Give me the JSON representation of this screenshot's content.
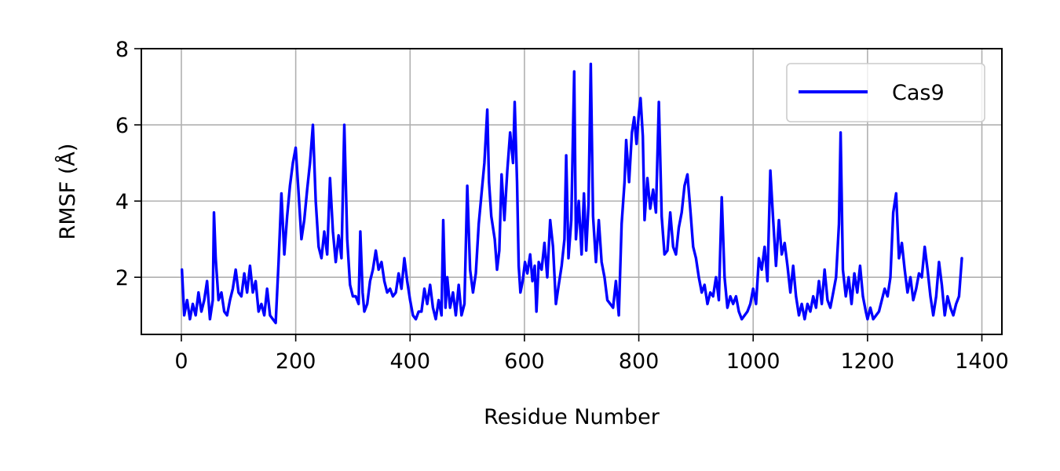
{
  "chart_data": {
    "type": "line",
    "xlabel": "Residue Number",
    "ylabel": "RMSF (Å)",
    "xlim": [
      -70,
      1435
    ],
    "ylim": [
      0.5,
      8
    ],
    "xticks": [
      0,
      200,
      400,
      600,
      800,
      1000,
      1200,
      1400
    ],
    "yticks": [
      2,
      4,
      6,
      8
    ],
    "grid": true,
    "legend": "top-right",
    "series": [
      {
        "name": "Cas9",
        "color": "#0000ff",
        "points": [
          [
            1,
            2.2
          ],
          [
            5,
            1.0
          ],
          [
            10,
            1.4
          ],
          [
            15,
            0.9
          ],
          [
            20,
            1.3
          ],
          [
            25,
            1.0
          ],
          [
            30,
            1.6
          ],
          [
            35,
            1.1
          ],
          [
            40,
            1.4
          ],
          [
            45,
            1.9
          ],
          [
            50,
            0.9
          ],
          [
            55,
            1.4
          ],
          [
            57,
            3.7
          ],
          [
            60,
            2.5
          ],
          [
            65,
            1.4
          ],
          [
            70,
            1.6
          ],
          [
            75,
            1.1
          ],
          [
            80,
            1.0
          ],
          [
            85,
            1.4
          ],
          [
            90,
            1.7
          ],
          [
            95,
            2.2
          ],
          [
            100,
            1.6
          ],
          [
            105,
            1.5
          ],
          [
            110,
            2.1
          ],
          [
            115,
            1.6
          ],
          [
            120,
            2.3
          ],
          [
            125,
            1.6
          ],
          [
            130,
            1.9
          ],
          [
            135,
            1.1
          ],
          [
            140,
            1.3
          ],
          [
            145,
            1.0
          ],
          [
            150,
            1.7
          ],
          [
            155,
            1.0
          ],
          [
            160,
            0.9
          ],
          [
            165,
            0.8
          ],
          [
            170,
            2.4
          ],
          [
            175,
            4.2
          ],
          [
            180,
            2.6
          ],
          [
            185,
            3.6
          ],
          [
            190,
            4.4
          ],
          [
            195,
            5.0
          ],
          [
            200,
            5.4
          ],
          [
            205,
            4.2
          ],
          [
            210,
            3.0
          ],
          [
            215,
            3.5
          ],
          [
            220,
            4.3
          ],
          [
            225,
            5.0
          ],
          [
            230,
            6.0
          ],
          [
            235,
            4.0
          ],
          [
            240,
            2.8
          ],
          [
            245,
            2.5
          ],
          [
            250,
            3.2
          ],
          [
            255,
            2.6
          ],
          [
            260,
            4.6
          ],
          [
            265,
            3.2
          ],
          [
            270,
            2.4
          ],
          [
            275,
            3.1
          ],
          [
            280,
            2.5
          ],
          [
            285,
            6.0
          ],
          [
            290,
            3.0
          ],
          [
            295,
            1.8
          ],
          [
            300,
            1.5
          ],
          [
            305,
            1.5
          ],
          [
            310,
            1.3
          ],
          [
            313,
            3.2
          ],
          [
            317,
            1.6
          ],
          [
            320,
            1.1
          ],
          [
            325,
            1.3
          ],
          [
            330,
            1.9
          ],
          [
            335,
            2.2
          ],
          [
            340,
            2.7
          ],
          [
            345,
            2.2
          ],
          [
            350,
            2.4
          ],
          [
            355,
            1.9
          ],
          [
            360,
            1.6
          ],
          [
            365,
            1.7
          ],
          [
            370,
            1.5
          ],
          [
            375,
            1.6
          ],
          [
            380,
            2.1
          ],
          [
            385,
            1.7
          ],
          [
            390,
            2.5
          ],
          [
            395,
            1.9
          ],
          [
            400,
            1.4
          ],
          [
            405,
            1.0
          ],
          [
            410,
            0.9
          ],
          [
            415,
            1.1
          ],
          [
            420,
            1.1
          ],
          [
            425,
            1.7
          ],
          [
            430,
            1.3
          ],
          [
            435,
            1.8
          ],
          [
            440,
            1.2
          ],
          [
            445,
            0.9
          ],
          [
            450,
            1.4
          ],
          [
            455,
            1.0
          ],
          [
            458,
            3.5
          ],
          [
            462,
            1.2
          ],
          [
            465,
            2.0
          ],
          [
            470,
            1.2
          ],
          [
            475,
            1.6
          ],
          [
            480,
            1.0
          ],
          [
            485,
            1.8
          ],
          [
            490,
            1.0
          ],
          [
            495,
            1.3
          ],
          [
            500,
            4.4
          ],
          [
            505,
            2.2
          ],
          [
            510,
            1.6
          ],
          [
            515,
            2.1
          ],
          [
            520,
            3.4
          ],
          [
            525,
            4.2
          ],
          [
            530,
            5.0
          ],
          [
            535,
            6.4
          ],
          [
            538,
            4.5
          ],
          [
            542,
            3.6
          ],
          [
            548,
            3.0
          ],
          [
            552,
            2.2
          ],
          [
            556,
            2.7
          ],
          [
            560,
            4.7
          ],
          [
            565,
            3.5
          ],
          [
            570,
            4.8
          ],
          [
            575,
            5.8
          ],
          [
            580,
            5.0
          ],
          [
            583,
            6.6
          ],
          [
            587,
            4.5
          ],
          [
            590,
            2.3
          ],
          [
            593,
            1.6
          ],
          [
            597,
            1.9
          ],
          [
            601,
            2.4
          ],
          [
            605,
            2.1
          ],
          [
            610,
            2.6
          ],
          [
            614,
            1.9
          ],
          [
            618,
            2.3
          ],
          [
            621,
            1.1
          ],
          [
            625,
            2.4
          ],
          [
            630,
            2.2
          ],
          [
            635,
            2.9
          ],
          [
            640,
            2.0
          ],
          [
            645,
            3.5
          ],
          [
            650,
            2.8
          ],
          [
            655,
            1.3
          ],
          [
            660,
            1.8
          ],
          [
            665,
            2.3
          ],
          [
            670,
            3.0
          ],
          [
            673,
            5.2
          ],
          [
            677,
            2.5
          ],
          [
            682,
            3.5
          ],
          [
            687,
            7.4
          ],
          [
            690,
            3.0
          ],
          [
            695,
            4.0
          ],
          [
            700,
            2.6
          ],
          [
            704,
            4.2
          ],
          [
            708,
            2.7
          ],
          [
            712,
            3.9
          ],
          [
            716,
            7.6
          ],
          [
            720,
            3.6
          ],
          [
            725,
            2.4
          ],
          [
            730,
            3.5
          ],
          [
            735,
            2.4
          ],
          [
            740,
            2.0
          ],
          [
            745,
            1.4
          ],
          [
            750,
            1.3
          ],
          [
            755,
            1.2
          ],
          [
            760,
            1.9
          ],
          [
            765,
            1.0
          ],
          [
            770,
            3.4
          ],
          [
            775,
            4.5
          ],
          [
            778,
            5.6
          ],
          [
            783,
            4.5
          ],
          [
            788,
            5.8
          ],
          [
            792,
            6.2
          ],
          [
            796,
            5.5
          ],
          [
            800,
            6.3
          ],
          [
            803,
            6.7
          ],
          [
            807,
            5.7
          ],
          [
            810,
            3.5
          ],
          [
            815,
            4.6
          ],
          [
            820,
            3.8
          ],
          [
            825,
            4.3
          ],
          [
            830,
            3.7
          ],
          [
            835,
            6.6
          ],
          [
            840,
            3.6
          ],
          [
            845,
            2.6
          ],
          [
            850,
            2.7
          ],
          [
            855,
            3.7
          ],
          [
            860,
            2.8
          ],
          [
            865,
            2.6
          ],
          [
            870,
            3.3
          ],
          [
            875,
            3.7
          ],
          [
            880,
            4.4
          ],
          [
            885,
            4.7
          ],
          [
            890,
            3.8
          ],
          [
            895,
            2.8
          ],
          [
            900,
            2.5
          ],
          [
            905,
            2.0
          ],
          [
            910,
            1.6
          ],
          [
            915,
            1.8
          ],
          [
            920,
            1.3
          ],
          [
            925,
            1.6
          ],
          [
            930,
            1.5
          ],
          [
            935,
            2.0
          ],
          [
            940,
            1.4
          ],
          [
            945,
            4.1
          ],
          [
            950,
            2.0
          ],
          [
            955,
            1.2
          ],
          [
            960,
            1.5
          ],
          [
            965,
            1.3
          ],
          [
            970,
            1.5
          ],
          [
            975,
            1.1
          ],
          [
            980,
            0.9
          ],
          [
            985,
            1.0
          ],
          [
            990,
            1.1
          ],
          [
            995,
            1.3
          ],
          [
            1000,
            1.7
          ],
          [
            1005,
            1.3
          ],
          [
            1010,
            2.5
          ],
          [
            1015,
            2.2
          ],
          [
            1020,
            2.8
          ],
          [
            1025,
            1.9
          ],
          [
            1030,
            4.8
          ],
          [
            1035,
            3.5
          ],
          [
            1040,
            2.3
          ],
          [
            1045,
            3.5
          ],
          [
            1050,
            2.6
          ],
          [
            1055,
            2.9
          ],
          [
            1060,
            2.3
          ],
          [
            1065,
            1.6
          ],
          [
            1070,
            2.3
          ],
          [
            1075,
            1.5
          ],
          [
            1080,
            1.0
          ],
          [
            1085,
            1.3
          ],
          [
            1090,
            0.9
          ],
          [
            1095,
            1.3
          ],
          [
            1100,
            1.1
          ],
          [
            1105,
            1.5
          ],
          [
            1110,
            1.2
          ],
          [
            1115,
            1.9
          ],
          [
            1120,
            1.3
          ],
          [
            1125,
            2.2
          ],
          [
            1130,
            1.4
          ],
          [
            1135,
            1.2
          ],
          [
            1140,
            1.6
          ],
          [
            1145,
            2.0
          ],
          [
            1150,
            3.4
          ],
          [
            1153,
            5.8
          ],
          [
            1157,
            2.2
          ],
          [
            1162,
            1.5
          ],
          [
            1167,
            2.0
          ],
          [
            1172,
            1.3
          ],
          [
            1177,
            2.1
          ],
          [
            1182,
            1.6
          ],
          [
            1187,
            2.3
          ],
          [
            1192,
            1.5
          ],
          [
            1197,
            1.1
          ],
          [
            1200,
            0.9
          ],
          [
            1205,
            1.2
          ],
          [
            1210,
            0.9
          ],
          [
            1215,
            1.0
          ],
          [
            1220,
            1.1
          ],
          [
            1225,
            1.4
          ],
          [
            1230,
            1.7
          ],
          [
            1235,
            1.5
          ],
          [
            1240,
            2.0
          ],
          [
            1245,
            3.7
          ],
          [
            1250,
            4.2
          ],
          [
            1255,
            2.5
          ],
          [
            1260,
            2.9
          ],
          [
            1265,
            2.2
          ],
          [
            1270,
            1.6
          ],
          [
            1275,
            2.0
          ],
          [
            1280,
            1.4
          ],
          [
            1285,
            1.7
          ],
          [
            1290,
            2.1
          ],
          [
            1295,
            2.0
          ],
          [
            1300,
            2.8
          ],
          [
            1305,
            2.2
          ],
          [
            1310,
            1.5
          ],
          [
            1315,
            1.0
          ],
          [
            1320,
            1.5
          ],
          [
            1325,
            2.4
          ],
          [
            1330,
            1.8
          ],
          [
            1335,
            1.0
          ],
          [
            1340,
            1.5
          ],
          [
            1345,
            1.2
          ],
          [
            1350,
            1.0
          ],
          [
            1355,
            1.3
          ],
          [
            1360,
            1.5
          ],
          [
            1365,
            2.5
          ]
        ]
      }
    ]
  }
}
